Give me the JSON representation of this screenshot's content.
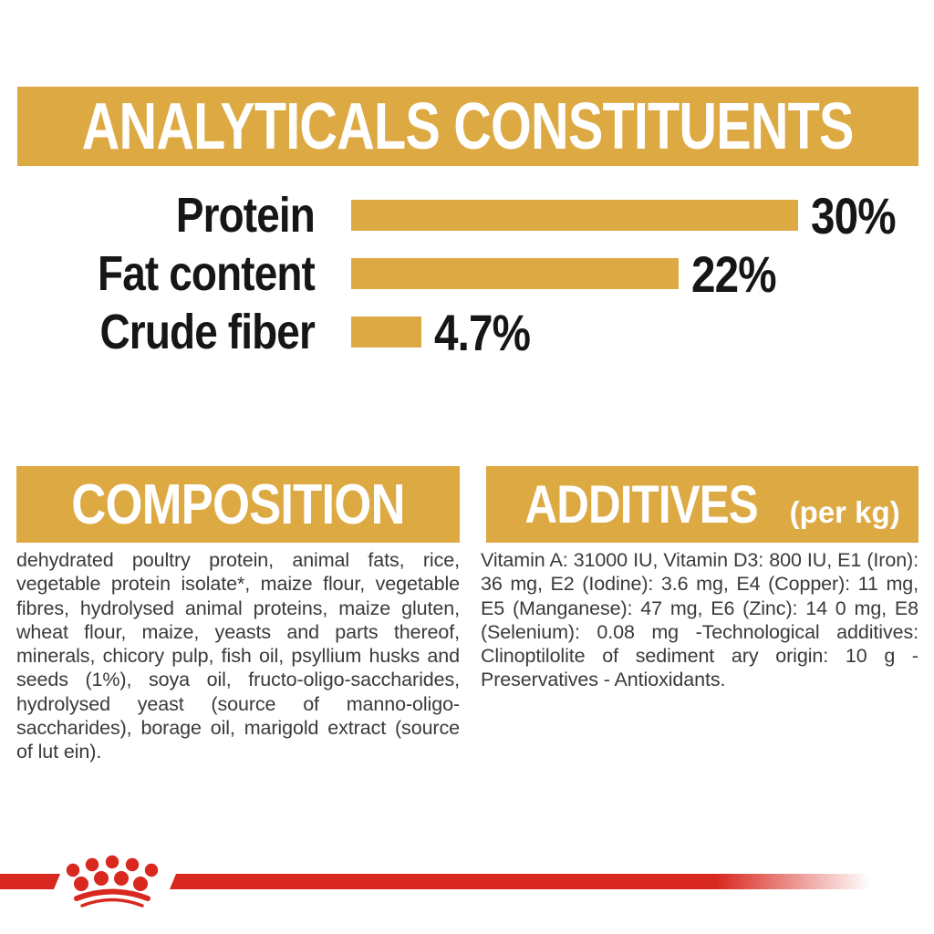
{
  "colors": {
    "gold": "#DDA942",
    "red": "#D8281F",
    "label_black": "#161615",
    "body_text": "#3A3A39",
    "banner_text": "#FFFFFF"
  },
  "header": {
    "title": "ANALYTICALS CONSTITUENTS"
  },
  "chart_data": {
    "type": "bar",
    "orientation": "horizontal",
    "title": "ANALYTICALS CONSTITUENTS",
    "categories": [
      "Protein",
      "Fat content",
      "Crude fiber"
    ],
    "values": [
      30,
      22,
      4.7
    ],
    "value_labels": [
      "30%",
      "22%",
      "4.7%"
    ],
    "xlim": [
      0,
      30
    ],
    "bar_color": "#DDA942",
    "grid": "off",
    "legend": "none"
  },
  "composition": {
    "title": "COMPOSITION",
    "text": "dehydrated poultry protein, animal fats, rice, vegetable protein isolate*, maize flour, vegetable fibres, hydrolysed animal proteins, maize gluten, wheat flour, maize, yeasts and parts thereof, minerals, chicory pulp, fish oil, psyllium husks and seeds (1%), soya oil, fructo-oligo-saccharides, hydrolysed yeast (source of manno-oligo-saccharides), borage oil, marigold extract (source of lut ein)."
  },
  "additives": {
    "title": "ADDITIVES",
    "subtitle": "(per kg)",
    "text": "Vitamin A: 31000 IU, Vitamin D3: 800 IU, E1 (Iron): 36 mg, E2 (Iodine): 3.6 mg, E4 (Copper): 11 mg, E5 (Manganese): 47 mg, E6 (Zinc): 14 0 mg, E8 (Selenium): 0.08 mg -Technological additives: Clinoptilolite of sediment ary origin: 10 g - Preservatives - Antioxidants."
  },
  "footer": {
    "brand_icon": "royal-canin-crown-icon"
  }
}
